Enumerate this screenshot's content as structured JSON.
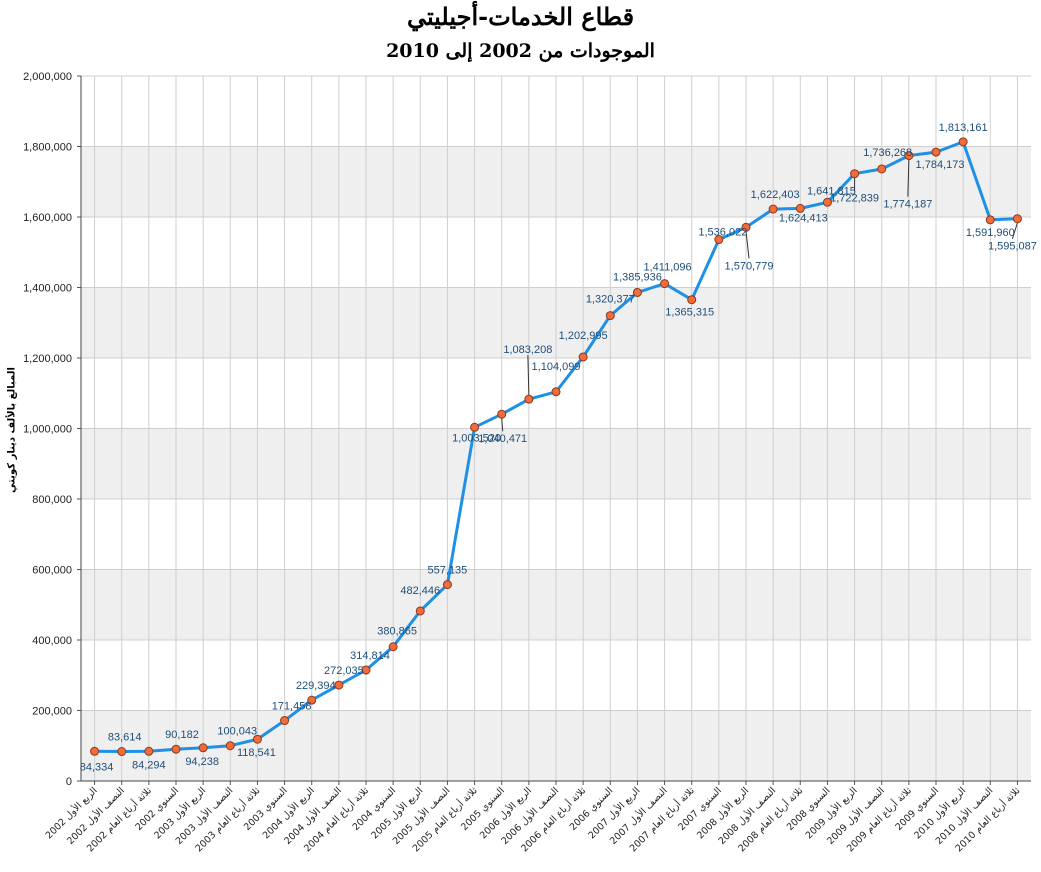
{
  "chart_data": {
    "type": "line",
    "title": "قطاع الخدمات-أجيليتي",
    "subtitle": "الموجودات من 2002 إلى 2010",
    "ylabel": "المبالغ بالألف دينار كويتي",
    "xlabel": "",
    "ylim": [
      0,
      2000000
    ],
    "yticks": [
      0,
      200000,
      400000,
      600000,
      800000,
      1000000,
      1200000,
      1400000,
      1600000,
      1800000,
      2000000
    ],
    "grid": true,
    "categories": [
      "الربع الأول 2002",
      "النصف الأول 2002",
      "ثلاثة أرباع العام 2002",
      "السنوي 2002",
      "الربع الأول 2003",
      "النصف الأول 2003",
      "ثلاثة أرباع العام 2003",
      "السنوي 2003",
      "الربع الأول 2004",
      "النصف الأول 2004",
      "ثلاثة أرباع العام 2004",
      "السنوي 2004",
      "الربع الأول 2005",
      "النصف الأول 2005",
      "ثلاثة أرباع العام 2005",
      "السنوي 2005",
      "الربع الأول 2006",
      "النصف الأول 2006",
      "ثلاثة أرباع العام 2006",
      "السنوي 2006",
      "الربع الأول 2007",
      "النصف الأول 2007",
      "ثلاثة أرباع العام 2007",
      "السنوي 2007",
      "الربع الأول 2008",
      "النصف الأول 2008",
      "ثلاثة أرباع العام 2008",
      "السنوي 2008",
      "الربع الأول 2009",
      "النصف الأول 2009",
      "ثلاثة أرباع العام 2009",
      "السنوي 2009",
      "الربع الأول 2010",
      "النصف الأول 2010",
      "ثلاثة أرباع العام 2010"
    ],
    "values": [
      84334,
      83614,
      84294,
      90182,
      94238,
      100043,
      118541,
      171458,
      229394,
      272035,
      314814,
      380865,
      482446,
      557135,
      1003520,
      1040471,
      1083208,
      1104099,
      1202995,
      1320377,
      1385936,
      1411096,
      1365315,
      1536022,
      1570779,
      1622403,
      1624413,
      1641815,
      1722839,
      1736268,
      1774187,
      1784173,
      1813161,
      1591960,
      1595087
    ],
    "labels": [
      "84,334",
      "83,614",
      "84,294",
      "90,182",
      "94,238",
      "100,043",
      "118,541",
      "171,458",
      "229,394",
      "272,035",
      "314,814",
      "380,865",
      "482,446",
      "557,135",
      "1,003,520",
      "1,040,471",
      "1,083,208",
      "1,104,099",
      "1,202,995",
      "1,320,377",
      "1,385,936",
      "1,411,096",
      "1,365,315",
      "1,536,022",
      "1,570,779",
      "1,622,403",
      "1,624,413",
      "1,641,815",
      "1,722,839",
      "1,736,268",
      "1,774,187",
      "1,784,173",
      "1,813,161",
      "1,591,960",
      "1,595,087"
    ],
    "colors": {
      "line": "#1e90e6",
      "marker_fill": "#f26b3a",
      "marker_stroke": "#8a3a1a",
      "band": "#efefef",
      "grid": "#cfcfcf",
      "label": "#1f4e79"
    }
  }
}
